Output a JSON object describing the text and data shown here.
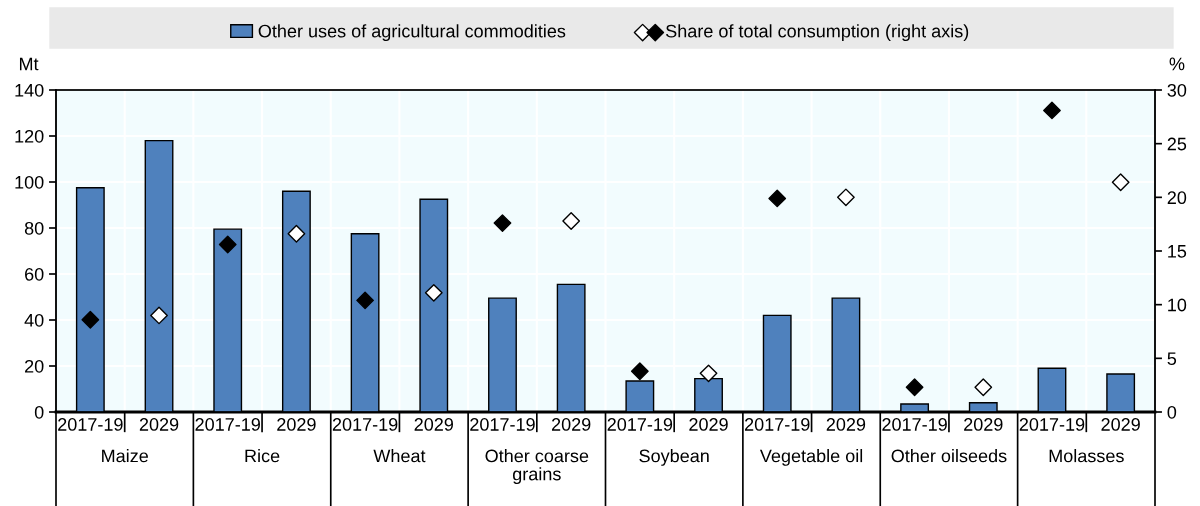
{
  "chart_data": {
    "type": "bar",
    "categories": [
      "2017-19",
      "2029",
      "2017-19",
      "2029",
      "2017-19",
      "2029",
      "2017-19",
      "2029",
      "2017-19",
      "2029",
      "2017-19",
      "2029",
      "2017-19",
      "2029",
      "2017-19",
      "2029"
    ],
    "annotations": [
      "Maize",
      "Rice",
      "Wheat",
      "Other coarse grains",
      "Soybean",
      "Vegetable oil",
      "Other oilseeds",
      "Molasses"
    ],
    "series": [
      {
        "name": "Other uses of agricultural commodities",
        "color": "#4f81bd",
        "values": [
          97.5,
          118,
          79.5,
          96,
          77.5,
          92.5,
          49.5,
          55.5,
          13.5,
          14.5,
          42,
          49.5,
          3.5,
          4,
          19,
          16.5
        ]
      },
      {
        "name": "Share of total consumption (right axis)",
        "type": "scatter",
        "axis": "y2",
        "color": "#000000",
        "values": [
          8.6,
          null,
          15.6,
          null,
          10.4,
          null,
          17.6,
          null,
          3.8,
          null,
          19.9,
          null,
          2.3,
          null,
          28.1,
          null
        ]
      },
      {
        "type": "scatter",
        "axis": "y2",
        "color": "#ffffff",
        "values": [
          null,
          9.0,
          null,
          16.6,
          null,
          11.1,
          null,
          17.8,
          null,
          3.6,
          null,
          20.0,
          null,
          2.3,
          null,
          21.4
        ]
      }
    ],
    "ylabel": "Mt",
    "y2label": "%",
    "ylim": [
      0,
      140
    ],
    "yticks": [
      0,
      20,
      40,
      60,
      80,
      100,
      120,
      140
    ],
    "y2lim": [
      0,
      30
    ],
    "y2ticks": [
      0,
      5,
      10,
      15,
      20,
      25,
      30
    ],
    "marker": "diamond",
    "grid": true,
    "legend": "top"
  }
}
